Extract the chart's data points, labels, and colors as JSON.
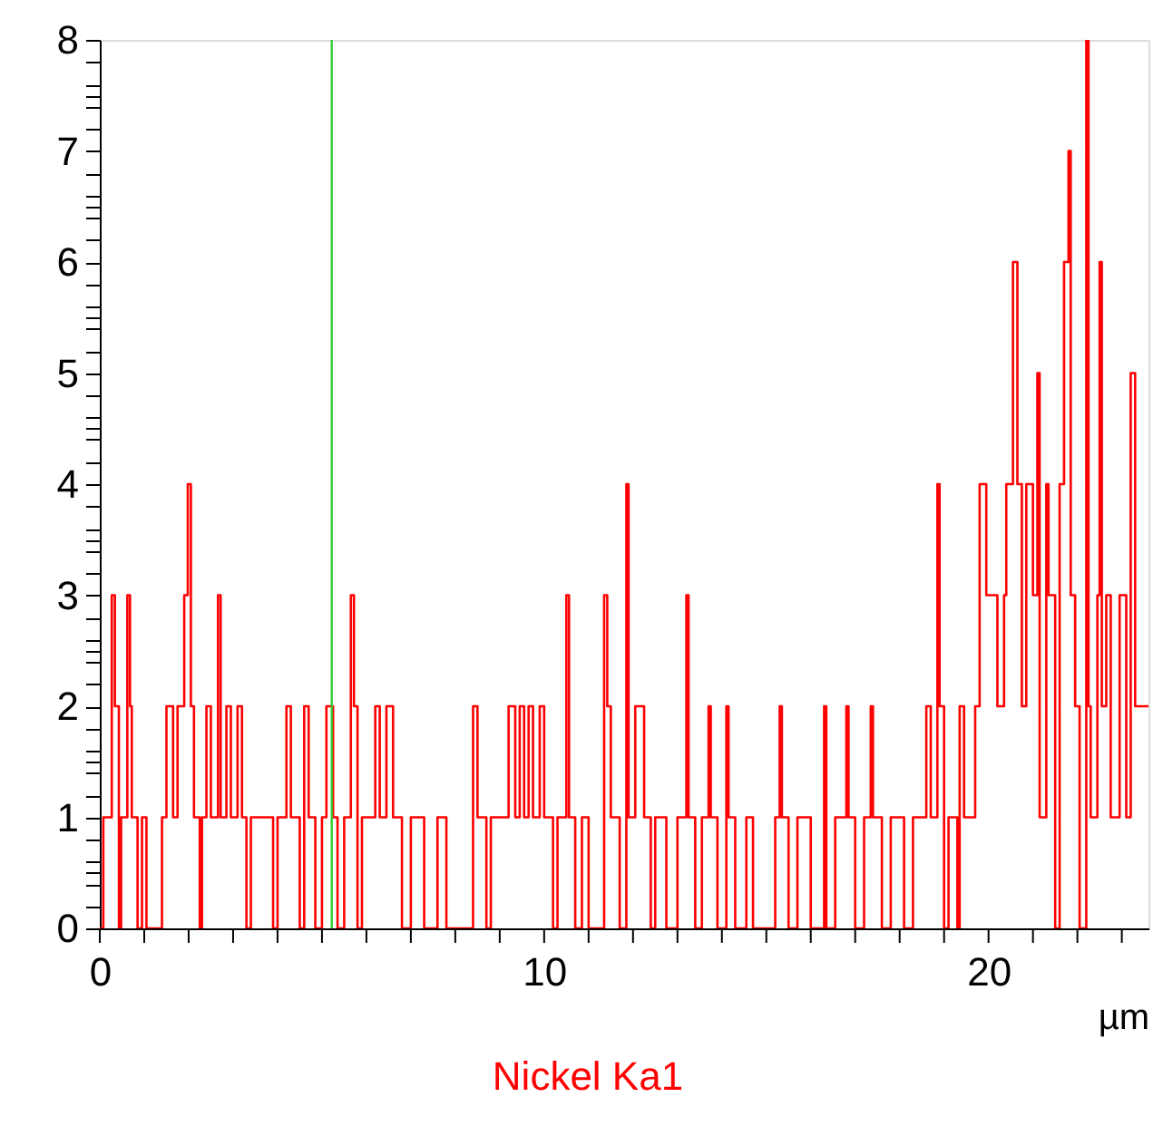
{
  "chart_data": {
    "type": "step",
    "xlabel": "µm",
    "xlim": [
      0,
      23.6
    ],
    "ylim": [
      0,
      8
    ],
    "xticks": [
      0,
      {
        "value": 1,
        "label": null
      },
      {
        "value": 2,
        "label": null
      },
      {
        "value": 3,
        "label": null
      },
      {
        "value": 4,
        "label": null
      },
      {
        "value": 5,
        "label": null
      },
      {
        "value": 6,
        "label": null
      },
      {
        "value": 7,
        "label": null
      },
      {
        "value": 8,
        "label": null
      },
      {
        "value": 9,
        "label": null
      },
      10,
      {
        "value": 11,
        "label": null
      },
      {
        "value": 12,
        "label": null
      },
      {
        "value": 13,
        "label": null
      },
      {
        "value": 14,
        "label": null
      },
      {
        "value": 15,
        "label": null
      },
      {
        "value": 16,
        "label": null
      },
      {
        "value": 17,
        "label": null
      },
      {
        "value": 18,
        "label": null
      },
      {
        "value": 19,
        "label": null
      },
      20,
      {
        "value": 21,
        "label": null
      },
      {
        "value": 22,
        "label": null
      },
      {
        "value": 23,
        "label": null
      }
    ],
    "yticks": [
      0,
      1,
      2,
      3,
      4,
      5,
      6,
      7,
      8,
      {
        "value": 0.5,
        "label": null
      },
      {
        "value": 1.5,
        "label": null
      },
      {
        "value": 2.5,
        "label": null
      },
      {
        "value": 3.5,
        "label": null
      },
      {
        "value": 4.5,
        "label": null
      },
      {
        "value": 5.5,
        "label": null
      },
      {
        "value": 6.5,
        "label": null
      },
      {
        "value": 7.5,
        "label": null
      },
      {
        "value": 0.2,
        "label": null
      },
      {
        "value": 0.4,
        "label": null
      },
      {
        "value": 0.6,
        "label": null
      },
      {
        "value": 0.8,
        "label": null
      },
      {
        "value": 1.2,
        "label": null
      },
      {
        "value": 1.4,
        "label": null
      },
      {
        "value": 1.6,
        "label": null
      },
      {
        "value": 1.8,
        "label": null
      },
      {
        "value": 2.2,
        "label": null
      },
      {
        "value": 2.4,
        "label": null
      },
      {
        "value": 2.6,
        "label": null
      },
      {
        "value": 2.8,
        "label": null
      },
      {
        "value": 3.2,
        "label": null
      },
      {
        "value": 3.4,
        "label": null
      },
      {
        "value": 3.6,
        "label": null
      },
      {
        "value": 3.8,
        "label": null
      },
      {
        "value": 4.2,
        "label": null
      },
      {
        "value": 4.4,
        "label": null
      },
      {
        "value": 4.6,
        "label": null
      },
      {
        "value": 4.8,
        "label": null
      },
      {
        "value": 5.2,
        "label": null
      },
      {
        "value": 5.4,
        "label": null
      },
      {
        "value": 5.6,
        "label": null
      },
      {
        "value": 5.8,
        "label": null
      },
      {
        "value": 6.2,
        "label": null
      },
      {
        "value": 6.4,
        "label": null
      },
      {
        "value": 6.6,
        "label": null
      },
      {
        "value": 6.8,
        "label": null
      },
      {
        "value": 7.2,
        "label": null
      },
      {
        "value": 7.4,
        "label": null
      },
      {
        "value": 7.6,
        "label": null
      },
      {
        "value": 7.8,
        "label": null
      }
    ],
    "grid": false,
    "marker": "none",
    "line_style": "solid",
    "ref_lines": [
      {
        "axis": "x",
        "value": 5.22,
        "color": "#33cc33"
      }
    ],
    "series": [
      {
        "name": "Nickel Ka1",
        "color": "#ff0000",
        "x": [
          0,
          0.08,
          0.27,
          0.34,
          0.43,
          0.48,
          0.62,
          0.68,
          0.72,
          0.85,
          0.95,
          1.05,
          1.4,
          1.5,
          1.65,
          1.75,
          1.9,
          1.98,
          2.05,
          2.12,
          2.25,
          2.3,
          2.4,
          2.5,
          2.66,
          2.72,
          2.85,
          2.95,
          3.1,
          3.2,
          3.3,
          3.4,
          3.9,
          4.0,
          4.2,
          4.3,
          4.5,
          4.6,
          4.7,
          4.85,
          5.0,
          5.1,
          5.25,
          5.35,
          5.5,
          5.65,
          5.72,
          5.8,
          5.9,
          6.2,
          6.3,
          6.45,
          6.6,
          6.8,
          7.0,
          7.3,
          7.6,
          7.8,
          8.4,
          8.5,
          8.7,
          8.8,
          9.2,
          9.35,
          9.45,
          9.55,
          9.65,
          9.75,
          9.9,
          10.0,
          10.2,
          10.3,
          10.5,
          10.56,
          10.7,
          10.85,
          11.0,
          11.35,
          11.42,
          11.5,
          11.7,
          11.85,
          11.9,
          12.05,
          12.25,
          12.4,
          12.5,
          12.75,
          13.0,
          13.2,
          13.25,
          13.4,
          13.55,
          13.7,
          13.75,
          13.9,
          14.1,
          14.15,
          14.3,
          14.55,
          14.7,
          15.2,
          15.3,
          15.35,
          15.5,
          15.7,
          16.0,
          16.3,
          16.35,
          16.55,
          16.8,
          16.85,
          17.0,
          17.2,
          17.35,
          17.4,
          17.6,
          17.8,
          18.1,
          18.3,
          18.6,
          18.7,
          18.85,
          18.9,
          19.0,
          19.1,
          19.3,
          19.35,
          19.45,
          19.7,
          19.8,
          19.95,
          20.2,
          20.35,
          20.4,
          20.55,
          20.65,
          20.75,
          20.85,
          21.0,
          21.1,
          21.15,
          21.3,
          21.35,
          21.5,
          21.6,
          21.7,
          21.8,
          21.85,
          21.95,
          22.05,
          22.2,
          22.25,
          22.3,
          22.45,
          22.5,
          22.55,
          22.65,
          22.75,
          22.95,
          23.1,
          23.2,
          23.3,
          23.6
        ],
        "values": [
          0,
          1,
          3,
          2,
          0,
          1,
          3,
          2,
          1,
          0,
          1,
          0,
          1,
          2,
          1,
          2,
          3,
          4,
          2,
          1,
          0,
          1,
          2,
          1,
          3,
          1,
          2,
          1,
          2,
          1,
          0,
          1,
          0,
          1,
          2,
          1,
          0,
          2,
          1,
          0,
          1,
          2,
          1,
          0,
          1,
          3,
          2,
          0,
          1,
          2,
          1,
          2,
          1,
          0,
          1,
          0,
          1,
          0,
          2,
          1,
          0,
          1,
          2,
          1,
          2,
          1,
          2,
          1,
          2,
          1,
          0,
          1,
          3,
          1,
          0,
          1,
          0,
          3,
          2,
          1,
          0,
          4,
          1,
          2,
          1,
          0,
          1,
          0,
          1,
          3,
          1,
          0,
          1,
          2,
          1,
          0,
          2,
          1,
          0,
          1,
          0,
          1,
          2,
          1,
          0,
          1,
          0,
          2,
          0,
          1,
          2,
          1,
          0,
          1,
          2,
          1,
          0,
          1,
          0,
          1,
          2,
          1,
          4,
          2,
          0,
          1,
          0,
          2,
          1,
          2,
          4,
          3,
          2,
          3,
          4,
          6,
          4,
          2,
          4,
          3,
          5,
          1,
          4,
          3,
          0,
          4,
          6,
          7,
          3,
          2,
          0,
          8,
          2,
          1,
          3,
          6,
          2,
          3,
          1,
          3,
          1,
          5,
          2,
          2
        ]
      }
    ]
  }
}
